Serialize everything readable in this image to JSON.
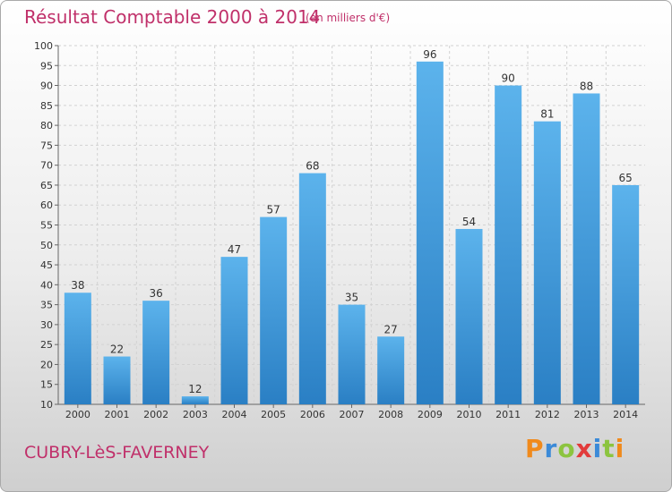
{
  "header": {
    "title": "Résultat Comptable 2000 à 2014",
    "subtitle": "(en milliers d'€)"
  },
  "footer": {
    "commune": "CUBRY-LèS-FAVERNEY",
    "brand": {
      "letters": [
        "P",
        "r",
        "o",
        "x",
        "i",
        "t",
        "i"
      ],
      "colors": [
        "#f08a1c",
        "#3b8ad8",
        "#8cc43f",
        "#e23b3b",
        "#3b8ad8",
        "#8cc43f",
        "#f08a1c"
      ]
    }
  },
  "chart_data": {
    "type": "bar",
    "categories": [
      "2000",
      "2001",
      "2002",
      "2003",
      "2004",
      "2005",
      "2006",
      "2007",
      "2008",
      "2009",
      "2010",
      "2011",
      "2012",
      "2013",
      "2014"
    ],
    "values": [
      38,
      22,
      36,
      12,
      47,
      57,
      68,
      35,
      27,
      96,
      54,
      90,
      81,
      88,
      65
    ],
    "title": "Résultat Comptable 2000 à 2014",
    "subtitle": "(en milliers d'€)",
    "ylim": [
      10,
      100
    ],
    "yticks": [
      10,
      15,
      20,
      25,
      30,
      35,
      40,
      45,
      50,
      55,
      60,
      65,
      70,
      75,
      80,
      85,
      90,
      95,
      100
    ],
    "grid": true,
    "bar_color": "#3d9ae0",
    "data_labels": true
  }
}
